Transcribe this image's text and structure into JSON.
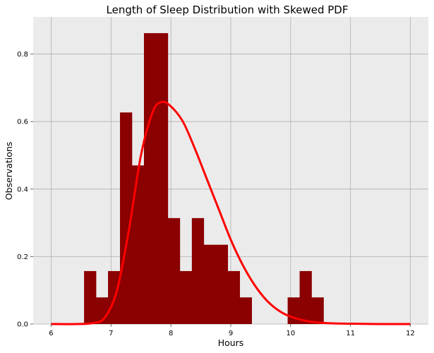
{
  "chart_data": {
    "type": "bar",
    "title": "Length of Sleep Distribution with Skewed PDF",
    "xlabel": "Hours",
    "ylabel": "Observations",
    "xlim": [
      5.7,
      12.3
    ],
    "ylim": [
      0,
      0.91
    ],
    "xticks": [
      6,
      7,
      8,
      9,
      10,
      11,
      12
    ],
    "yticks": [
      0.0,
      0.2,
      0.4,
      0.6,
      0.8
    ],
    "ytick_labels": [
      "0.0",
      "0.2",
      "0.4",
      "0.6",
      "0.8"
    ],
    "grid": true,
    "colors": {
      "background": "#ebebeb",
      "bars": "#8b0000",
      "curve": "#ff0000",
      "grid": "#b0b0b0"
    },
    "histogram": {
      "bin_edges": [
        6.55,
        6.75,
        6.95,
        7.15,
        7.35,
        7.55,
        7.75,
        7.95,
        8.15,
        8.35,
        8.55,
        8.75,
        8.95,
        9.15,
        9.35,
        9.55,
        9.75,
        9.95,
        10.15,
        10.35,
        10.55
      ],
      "values": [
        0.157,
        0.079,
        0.157,
        0.627,
        0.47,
        0.862,
        0.862,
        0.314,
        0.157,
        0.314,
        0.235,
        0.235,
        0.157,
        0.079,
        0.0,
        0.0,
        0.0,
        0.079,
        0.157,
        0.079
      ]
    },
    "pdf_curve": {
      "x": [
        6.0,
        6.4,
        6.7,
        6.9,
        7.1,
        7.3,
        7.5,
        7.7,
        7.85,
        8.0,
        8.2,
        8.4,
        8.6,
        8.8,
        9.0,
        9.2,
        9.4,
        9.6,
        9.8,
        10.0,
        10.3,
        10.6,
        11.0,
        11.5,
        12.0
      ],
      "y": [
        0.0,
        0.0,
        0.003,
        0.02,
        0.1,
        0.28,
        0.5,
        0.63,
        0.658,
        0.645,
        0.6,
        0.52,
        0.43,
        0.34,
        0.25,
        0.175,
        0.115,
        0.07,
        0.04,
        0.022,
        0.008,
        0.003,
        0.001,
        0.0,
        0.0
      ]
    }
  }
}
